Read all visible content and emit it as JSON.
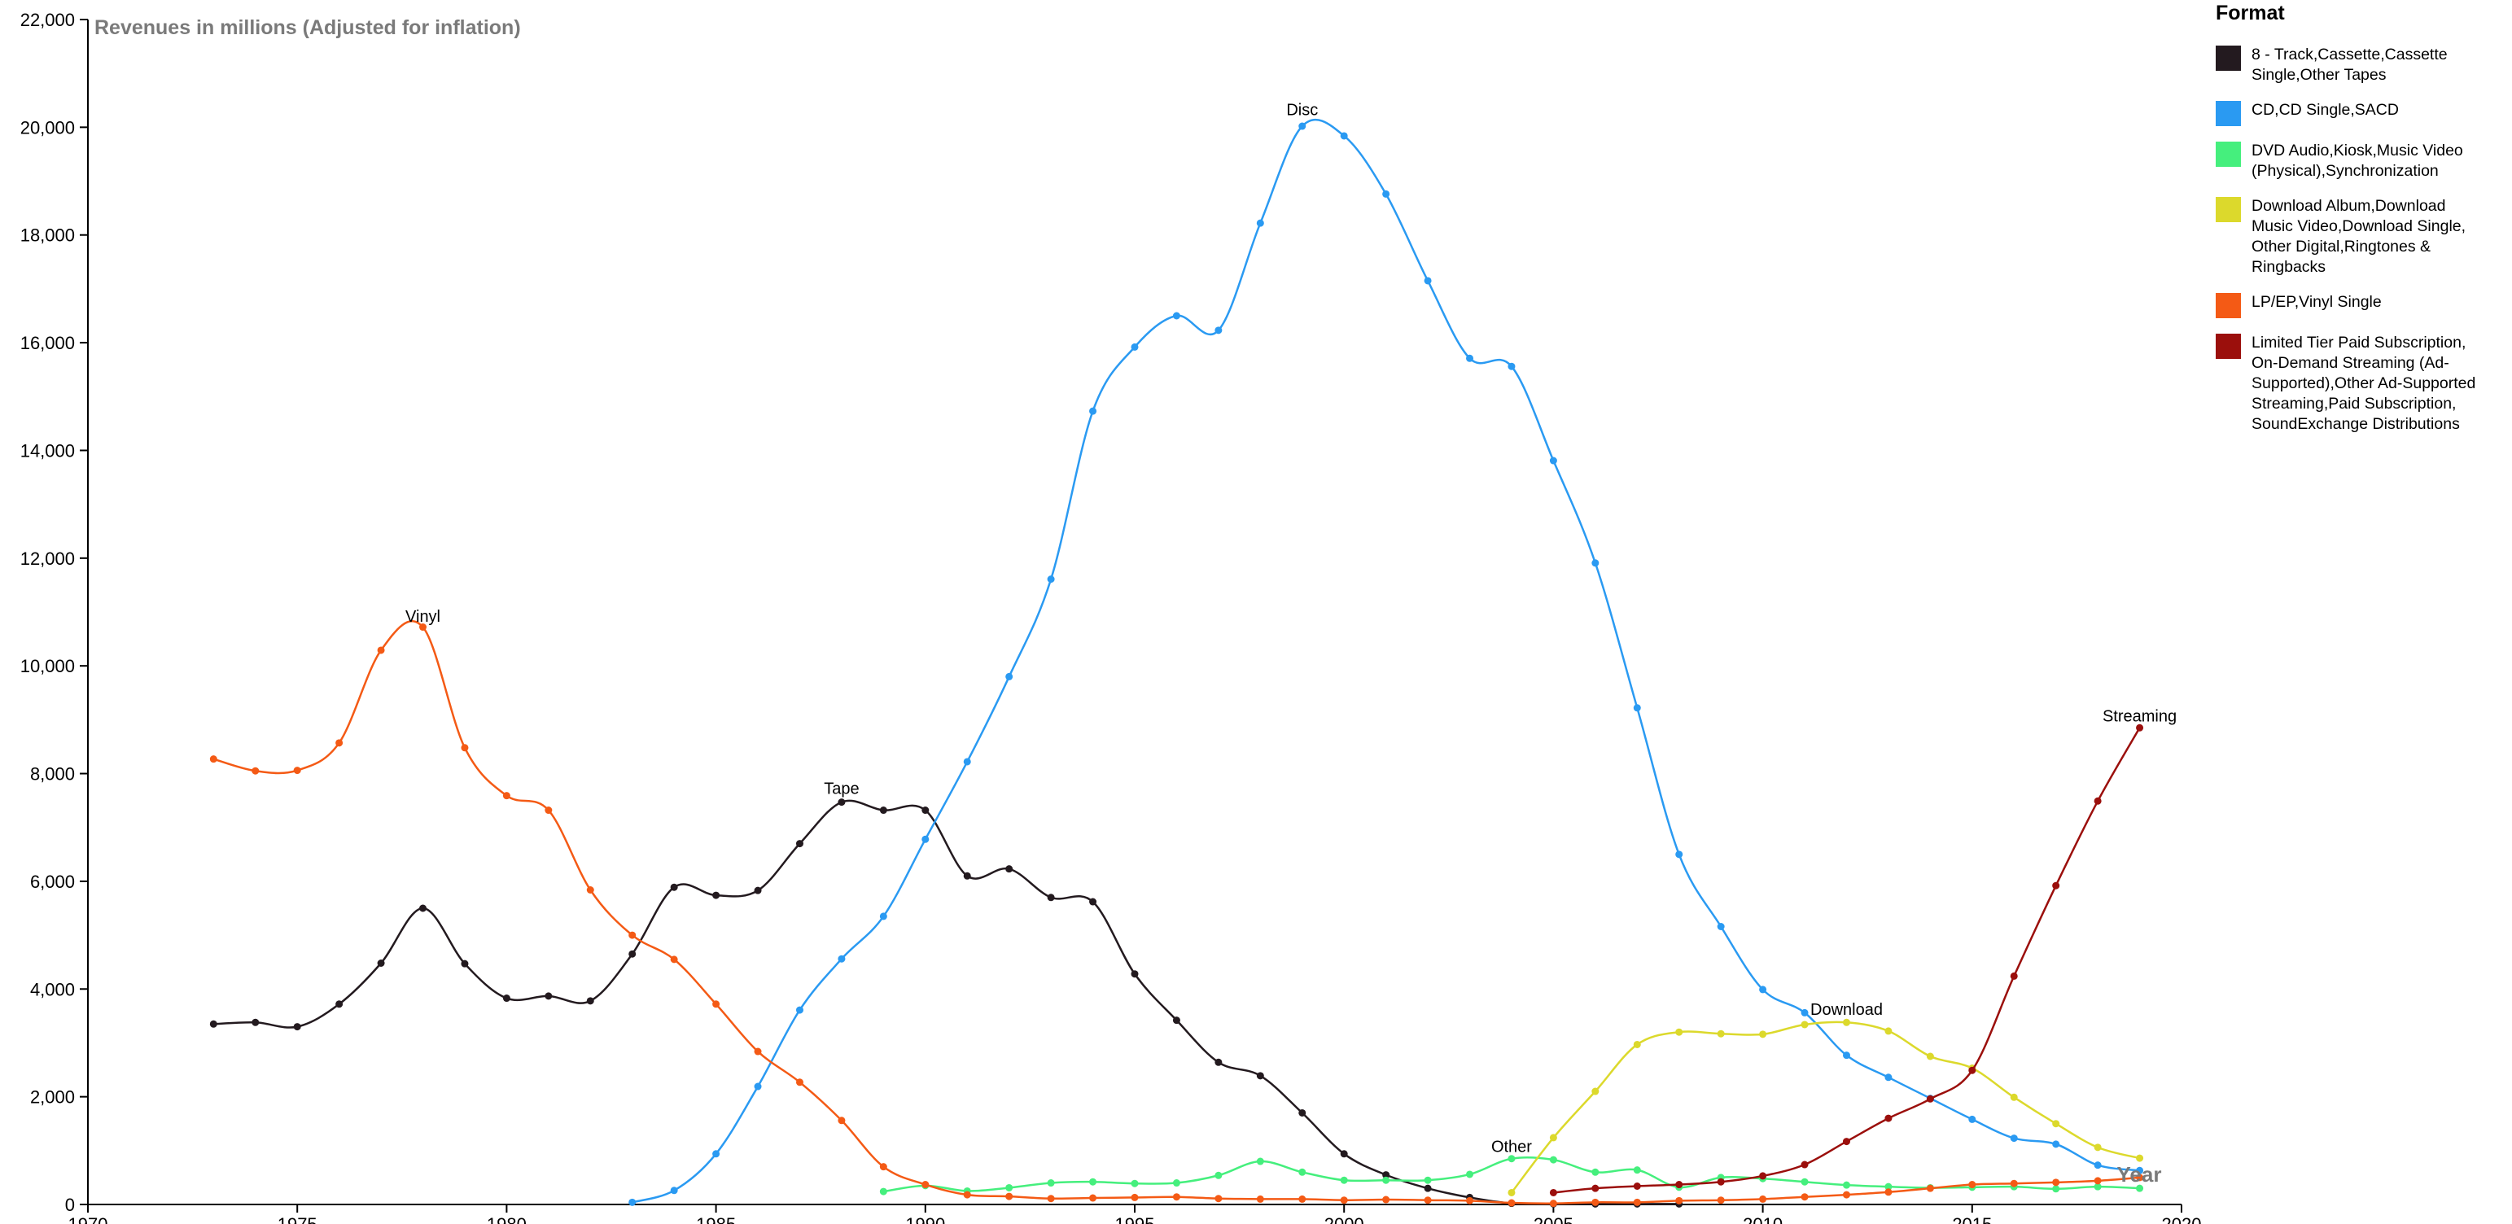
{
  "legend": {
    "title": "Format"
  },
  "chart_data": {
    "type": "line",
    "title": "Revenues in millions (Adjusted for inflation)",
    "xlabel": "Year",
    "ylabel": "",
    "xlim": [
      1970,
      2020
    ],
    "ylim": [
      0,
      22000
    ],
    "x_ticks": [
      "1970",
      "1975",
      "1980",
      "1985",
      "1990",
      "1995",
      "2000",
      "2005",
      "2010",
      "2015",
      "2020"
    ],
    "y_ticks": [
      "0",
      "2,000",
      "4,000",
      "6,000",
      "8,000",
      "10,000",
      "12,000",
      "14,000",
      "16,000",
      "18,000",
      "20,000",
      "22,000"
    ],
    "grid": false,
    "legend_position": "right",
    "series": [
      {
        "name": "8 - Track,Cassette,Cassette Single,Other Tapes",
        "label": "Tape",
        "label_year": 1988,
        "label_value": 7500,
        "color": "#231a1f",
        "x": [
          1973,
          1974,
          1975,
          1976,
          1977,
          1978,
          1979,
          1980,
          1981,
          1982,
          1983,
          1984,
          1985,
          1986,
          1987,
          1988,
          1989,
          1990,
          1991,
          1992,
          1993,
          1994,
          1995,
          1996,
          1997,
          1998,
          1999,
          2000,
          2001,
          2002,
          2003,
          2004,
          2005,
          2006,
          2007,
          2008
        ],
        "values": [
          3350,
          3380,
          3300,
          3720,
          4480,
          5500,
          4470,
          3830,
          3870,
          3780,
          4650,
          5890,
          5740,
          5830,
          6700,
          7470,
          7320,
          7320,
          6100,
          6230,
          5700,
          5620,
          4280,
          3420,
          2640,
          2390,
          1700,
          940,
          550,
          300,
          130,
          20,
          10,
          10,
          10,
          10
        ]
      },
      {
        "name": "CD,CD Single,SACD",
        "label": "Disc",
        "label_year": 1999,
        "label_value": 20100,
        "color": "#2a9af2",
        "x": [
          1983,
          1984,
          1985,
          1986,
          1987,
          1988,
          1989,
          1990,
          1991,
          1992,
          1993,
          1994,
          1995,
          1996,
          1997,
          1998,
          1999,
          2000,
          2001,
          2002,
          2003,
          2004,
          2005,
          2006,
          2007,
          2008,
          2009,
          2010,
          2011,
          2012,
          2013,
          2014,
          2015,
          2016,
          2017,
          2018,
          2019
        ],
        "values": [
          40,
          260,
          940,
          2190,
          3610,
          4560,
          5350,
          6780,
          8220,
          9800,
          11610,
          14730,
          15920,
          16500,
          16230,
          18220,
          20020,
          19840,
          18760,
          17150,
          15710,
          15560,
          13810,
          11910,
          9220,
          6500,
          5160,
          3990,
          3560,
          2770,
          2360,
          1970,
          1580,
          1230,
          1120,
          730,
          630
        ]
      },
      {
        "name": "DVD Audio,Kiosk,Music Video (Physical),Synchronization",
        "label": "Other",
        "label_year": 2004,
        "label_value": 850,
        "color": "#45ef7d",
        "x": [
          1989,
          1990,
          1991,
          1992,
          1993,
          1994,
          1995,
          1996,
          1997,
          1998,
          1999,
          2000,
          2001,
          2002,
          2003,
          2004,
          2005,
          2006,
          2007,
          2008,
          2009,
          2010,
          2011,
          2012,
          2013,
          2014,
          2015,
          2016,
          2017,
          2018,
          2019
        ],
        "values": [
          240,
          350,
          250,
          310,
          400,
          420,
          390,
          400,
          540,
          800,
          600,
          450,
          450,
          450,
          560,
          850,
          830,
          600,
          640,
          320,
          500,
          480,
          420,
          360,
          330,
          310,
          320,
          330,
          290,
          330,
          300
        ]
      },
      {
        "name": "Download Album,Download Music Video,Download Single,Other Digital,Ringtones & Ringbacks",
        "label": "Download",
        "label_year": 2012,
        "label_value": 3400,
        "color": "#dcd92c",
        "x": [
          2004,
          2005,
          2006,
          2007,
          2008,
          2009,
          2010,
          2011,
          2012,
          2013,
          2014,
          2015,
          2016,
          2017,
          2018,
          2019
        ],
        "values": [
          220,
          1240,
          2100,
          2970,
          3200,
          3170,
          3160,
          3340,
          3380,
          3220,
          2750,
          2530,
          1990,
          1500,
          1060,
          860
        ]
      },
      {
        "name": "LP/EP,Vinyl Single",
        "label": "Vinyl",
        "label_year": 1978,
        "label_value": 10700,
        "color": "#f45a15",
        "x": [
          1973,
          1974,
          1975,
          1976,
          1977,
          1978,
          1979,
          1980,
          1981,
          1982,
          1983,
          1984,
          1985,
          1986,
          1987,
          1988,
          1989,
          1990,
          1991,
          1992,
          1993,
          1994,
          1995,
          1996,
          1997,
          1998,
          1999,
          2000,
          2001,
          2002,
          2003,
          2004,
          2005,
          2006,
          2007,
          2008,
          2009,
          2010,
          2011,
          2012,
          2013,
          2014,
          2015,
          2016,
          2017,
          2018,
          2019
        ],
        "values": [
          8270,
          8050,
          8060,
          8570,
          10290,
          10720,
          8480,
          7590,
          7320,
          5840,
          5000,
          4550,
          3720,
          2840,
          2270,
          1560,
          700,
          370,
          180,
          150,
          110,
          120,
          130,
          140,
          110,
          100,
          100,
          80,
          90,
          80,
          70,
          30,
          20,
          40,
          40,
          70,
          80,
          100,
          140,
          180,
          230,
          300,
          370,
          390,
          410,
          440,
          500
        ]
      },
      {
        "name": "Limited Tier Paid Subscription,On-Demand Streaming (Ad-Supported),Other Ad-Supported Streaming,Paid Subscription,SoundExchange Distributions",
        "label": "Streaming",
        "label_year": 2019,
        "label_value": 8850,
        "color": "#9b0f0c",
        "x": [
          2005,
          2006,
          2007,
          2008,
          2009,
          2010,
          2011,
          2012,
          2013,
          2014,
          2015,
          2016,
          2017,
          2018,
          2019
        ],
        "values": [
          220,
          300,
          340,
          370,
          420,
          530,
          740,
          1170,
          1600,
          1960,
          2490,
          4240,
          5920,
          7490,
          8850
        ]
      }
    ]
  }
}
